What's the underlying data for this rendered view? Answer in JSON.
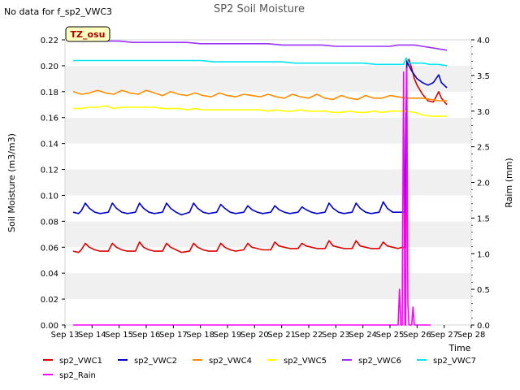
{
  "chart_data": {
    "type": "line",
    "title": "SP2 Soil Moisture",
    "no_data_note": "No data for f_sp2_VWC3",
    "badge": "TZ_osu",
    "xlabel": "Time",
    "ylabel": "Soil Moisture (m3/m3)",
    "y2label": "Raim (mm)",
    "x_ticks": [
      "Sep 13",
      "Sep 14",
      "Sep 15",
      "Sep 16",
      "Sep 17",
      "Sep 18",
      "Sep 19",
      "Sep 20",
      "Sep 21",
      "Sep 22",
      "Sep 23",
      "Sep 24",
      "Sep 25",
      "Sep 26",
      "Sep 27",
      "Sep 28"
    ],
    "x_range": [
      13.0,
      28.0
    ],
    "ylim": [
      0.0,
      0.22
    ],
    "y_ticks": [
      "0.00",
      "0.02",
      "0.04",
      "0.06",
      "0.08",
      "0.10",
      "0.12",
      "0.14",
      "0.16",
      "0.18",
      "0.20",
      "0.22"
    ],
    "y2lim": [
      0.0,
      4.0
    ],
    "y2_ticks": [
      "0.0",
      "0.5",
      "1.0",
      "1.5",
      "2.0",
      "2.5",
      "3.0",
      "3.5",
      "4.0"
    ],
    "grid": "horizontal bands",
    "legend_position": "bottom",
    "series": [
      {
        "name": "sp2_VWC1",
        "color": "#dd0000",
        "axis": "left",
        "x": [
          13.3,
          13.5,
          13.6,
          13.75,
          13.9,
          14.1,
          14.3,
          14.6,
          14.75,
          14.9,
          15.1,
          15.3,
          15.6,
          15.75,
          15.9,
          16.1,
          16.3,
          16.6,
          16.75,
          16.9,
          17.1,
          17.3,
          17.6,
          17.75,
          17.9,
          18.1,
          18.3,
          18.6,
          18.75,
          18.9,
          19.1,
          19.3,
          19.6,
          19.75,
          19.9,
          20.1,
          20.3,
          20.6,
          20.75,
          20.9,
          21.1,
          21.3,
          21.6,
          21.75,
          21.9,
          22.1,
          22.3,
          22.6,
          22.75,
          22.9,
          23.1,
          23.3,
          23.6,
          23.75,
          23.9,
          24.1,
          24.3,
          24.6,
          24.75,
          24.9,
          25.1,
          25.3,
          25.45,
          25.55,
          25.62,
          25.7,
          25.8,
          25.9,
          26.0,
          26.2,
          26.4,
          26.6,
          26.8,
          26.9,
          27.1
        ],
        "y": [
          0.057,
          0.056,
          0.058,
          0.063,
          0.06,
          0.058,
          0.057,
          0.057,
          0.063,
          0.06,
          0.058,
          0.057,
          0.057,
          0.064,
          0.06,
          0.058,
          0.057,
          0.057,
          0.063,
          0.06,
          0.058,
          0.056,
          0.057,
          0.063,
          0.06,
          0.058,
          0.057,
          0.057,
          0.063,
          0.06,
          0.058,
          0.057,
          0.058,
          0.063,
          0.06,
          0.059,
          0.058,
          0.058,
          0.064,
          0.061,
          0.06,
          0.059,
          0.059,
          0.063,
          0.061,
          0.06,
          0.059,
          0.059,
          0.065,
          0.061,
          0.06,
          0.059,
          0.059,
          0.065,
          0.061,
          0.06,
          0.059,
          0.059,
          0.064,
          0.061,
          0.06,
          0.059,
          0.06,
          0.06,
          0.2,
          0.205,
          0.198,
          0.19,
          0.185,
          0.178,
          0.173,
          0.172,
          0.18,
          0.175,
          0.17
        ]
      },
      {
        "name": "sp2_VWC2",
        "color": "#0000cc",
        "axis": "left",
        "x": [
          13.3,
          13.5,
          13.6,
          13.75,
          13.9,
          14.1,
          14.3,
          14.6,
          14.75,
          14.9,
          15.1,
          15.3,
          15.6,
          15.75,
          15.9,
          16.1,
          16.3,
          16.6,
          16.75,
          16.9,
          17.1,
          17.3,
          17.6,
          17.75,
          17.9,
          18.1,
          18.3,
          18.6,
          18.75,
          18.9,
          19.1,
          19.3,
          19.6,
          19.75,
          19.9,
          20.1,
          20.3,
          20.6,
          20.75,
          20.9,
          21.1,
          21.3,
          21.6,
          21.75,
          21.9,
          22.1,
          22.3,
          22.6,
          22.75,
          22.9,
          23.1,
          23.3,
          23.6,
          23.75,
          23.9,
          24.1,
          24.3,
          24.6,
          24.75,
          24.9,
          25.1,
          25.3,
          25.45,
          25.55,
          25.62,
          25.7,
          25.8,
          25.9,
          26.0,
          26.2,
          26.4,
          26.6,
          26.8,
          26.9,
          27.1
        ],
        "y": [
          0.087,
          0.086,
          0.088,
          0.094,
          0.09,
          0.087,
          0.086,
          0.087,
          0.094,
          0.09,
          0.087,
          0.086,
          0.087,
          0.094,
          0.09,
          0.087,
          0.086,
          0.087,
          0.094,
          0.09,
          0.087,
          0.085,
          0.087,
          0.094,
          0.09,
          0.087,
          0.086,
          0.087,
          0.093,
          0.09,
          0.087,
          0.086,
          0.087,
          0.092,
          0.089,
          0.087,
          0.086,
          0.087,
          0.092,
          0.089,
          0.087,
          0.086,
          0.087,
          0.091,
          0.089,
          0.087,
          0.086,
          0.087,
          0.094,
          0.09,
          0.087,
          0.086,
          0.087,
          0.094,
          0.09,
          0.087,
          0.086,
          0.087,
          0.095,
          0.09,
          0.087,
          0.087,
          0.087,
          0.087,
          0.204,
          0.2,
          0.196,
          0.193,
          0.19,
          0.187,
          0.185,
          0.187,
          0.193,
          0.187,
          0.183
        ]
      },
      {
        "name": "sp2_VWC4",
        "color": "#ff8c00",
        "axis": "left",
        "x": [
          13.3,
          13.6,
          13.9,
          14.2,
          14.5,
          14.8,
          15.1,
          15.4,
          15.7,
          16.0,
          16.3,
          16.6,
          16.9,
          17.2,
          17.5,
          17.8,
          18.1,
          18.4,
          18.7,
          19.0,
          19.3,
          19.6,
          19.9,
          20.2,
          20.5,
          20.8,
          21.1,
          21.4,
          21.7,
          22.0,
          22.3,
          22.6,
          22.9,
          23.2,
          23.5,
          23.8,
          24.1,
          24.4,
          24.7,
          25.0,
          25.3,
          25.6,
          25.9,
          26.2,
          26.5,
          26.8,
          27.1
        ],
        "y": [
          0.18,
          0.178,
          0.179,
          0.181,
          0.179,
          0.178,
          0.181,
          0.179,
          0.178,
          0.181,
          0.179,
          0.177,
          0.18,
          0.178,
          0.177,
          0.179,
          0.177,
          0.176,
          0.179,
          0.177,
          0.176,
          0.178,
          0.177,
          0.176,
          0.178,
          0.176,
          0.175,
          0.178,
          0.176,
          0.175,
          0.178,
          0.175,
          0.174,
          0.177,
          0.175,
          0.174,
          0.177,
          0.175,
          0.175,
          0.177,
          0.176,
          0.175,
          0.175,
          0.175,
          0.174,
          0.173,
          0.173
        ]
      },
      {
        "name": "sp2_VWC5",
        "color": "#ffff00",
        "axis": "left",
        "x": [
          13.3,
          13.6,
          13.9,
          14.2,
          14.5,
          14.8,
          15.1,
          15.4,
          15.7,
          16.0,
          16.3,
          16.6,
          16.9,
          17.2,
          17.5,
          17.8,
          18.1,
          18.4,
          18.7,
          19.0,
          19.3,
          19.6,
          19.9,
          20.2,
          20.5,
          20.8,
          21.1,
          21.4,
          21.7,
          22.0,
          22.3,
          22.6,
          22.9,
          23.2,
          23.5,
          23.8,
          24.1,
          24.4,
          24.7,
          25.0,
          25.3,
          25.6,
          25.9,
          26.2,
          26.5,
          26.8,
          27.1
        ],
        "y": [
          0.167,
          0.167,
          0.168,
          0.168,
          0.169,
          0.167,
          0.168,
          0.168,
          0.168,
          0.168,
          0.168,
          0.167,
          0.167,
          0.167,
          0.166,
          0.167,
          0.166,
          0.166,
          0.166,
          0.166,
          0.166,
          0.166,
          0.166,
          0.166,
          0.165,
          0.166,
          0.165,
          0.165,
          0.166,
          0.165,
          0.165,
          0.165,
          0.164,
          0.164,
          0.165,
          0.164,
          0.164,
          0.165,
          0.164,
          0.165,
          0.165,
          0.165,
          0.164,
          0.162,
          0.161,
          0.161,
          0.161
        ]
      },
      {
        "name": "sp2_VWC6",
        "color": "#9b30ff",
        "axis": "left",
        "x": [
          13.3,
          14.0,
          14.5,
          15.0,
          15.5,
          16.0,
          16.5,
          17.0,
          17.5,
          18.0,
          18.5,
          19.0,
          19.5,
          20.0,
          20.5,
          21.0,
          21.5,
          22.0,
          22.5,
          23.0,
          23.5,
          24.0,
          24.5,
          25.0,
          25.3,
          25.6,
          25.9,
          26.2,
          26.5,
          26.8,
          27.1
        ],
        "y": [
          0.219,
          0.219,
          0.219,
          0.219,
          0.218,
          0.218,
          0.218,
          0.218,
          0.218,
          0.217,
          0.217,
          0.217,
          0.217,
          0.217,
          0.217,
          0.216,
          0.216,
          0.216,
          0.216,
          0.215,
          0.215,
          0.215,
          0.215,
          0.215,
          0.216,
          0.216,
          0.216,
          0.215,
          0.214,
          0.213,
          0.212
        ]
      },
      {
        "name": "sp2_VWC7",
        "color": "#00e5ee",
        "axis": "left",
        "x": [
          13.3,
          14.0,
          14.5,
          15.0,
          15.5,
          16.0,
          16.5,
          17.0,
          17.5,
          18.0,
          18.5,
          19.0,
          19.5,
          20.0,
          20.5,
          21.0,
          21.5,
          22.0,
          22.5,
          23.0,
          23.5,
          24.0,
          24.5,
          25.0,
          25.3,
          25.5,
          25.6,
          25.7,
          25.9,
          26.2,
          26.5,
          26.8,
          27.1
        ],
        "y": [
          0.204,
          0.204,
          0.204,
          0.204,
          0.204,
          0.204,
          0.204,
          0.204,
          0.204,
          0.204,
          0.203,
          0.203,
          0.203,
          0.203,
          0.203,
          0.203,
          0.202,
          0.202,
          0.202,
          0.202,
          0.202,
          0.202,
          0.201,
          0.201,
          0.201,
          0.201,
          0.206,
          0.202,
          0.202,
          0.202,
          0.201,
          0.201,
          0.2
        ]
      },
      {
        "name": "sp2_Rain",
        "color": "#ff00ff",
        "axis": "right",
        "x": [
          13.3,
          25.3,
          25.35,
          25.4,
          25.45,
          25.5,
          25.55,
          25.58,
          25.62,
          25.66,
          25.7,
          25.75,
          25.8,
          25.85,
          25.9,
          25.95,
          26.0,
          26.5
        ],
        "y": [
          0.0,
          0.0,
          0.5,
          0.0,
          0.0,
          3.55,
          0.0,
          0.0,
          3.6,
          0.3,
          0.0,
          0.0,
          0.0,
          0.25,
          0.0,
          0.0,
          0.0,
          0.0
        ]
      }
    ]
  }
}
